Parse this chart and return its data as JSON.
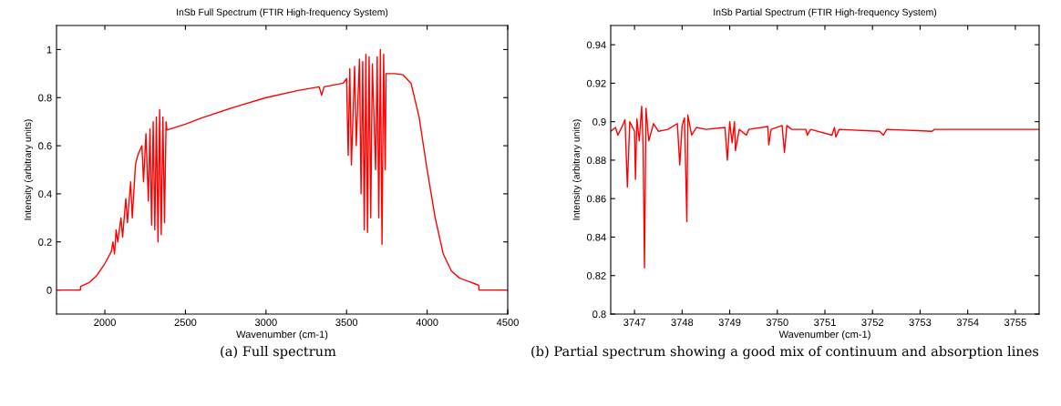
{
  "chart_data": [
    {
      "type": "line",
      "title": "InSb Full Spectrum (FTIR High-frequency System)",
      "xlabel": "Wavenumber (cm-1)",
      "ylabel": "Intensity (arbitrary units)",
      "xlim": [
        1700,
        4500
      ],
      "ylim": [
        -0.1,
        1.1
      ],
      "xticks": [
        2000,
        2500,
        3000,
        3500,
        4000,
        4500
      ],
      "yticks": [
        0,
        0.2,
        0.4,
        0.6,
        0.8,
        1
      ],
      "grid": false,
      "legend": false,
      "annotations": [
        "(a) Full spectrum"
      ],
      "series": [
        {
          "color": "#ff0000",
          "x": [
            1700,
            1848,
            1850,
            1900,
            1950,
            2000,
            2040,
            2050,
            2060,
            2070,
            2080,
            2100,
            2110,
            2130,
            2140,
            2160,
            2170,
            2190,
            2200,
            2210,
            2230,
            2240,
            2255,
            2270,
            2280,
            2290,
            2300,
            2310,
            2320,
            2330,
            2340,
            2350,
            2360,
            2370,
            2380,
            2385,
            2500,
            2600,
            2800,
            3000,
            3200,
            3330,
            3345,
            3360,
            3480,
            3500,
            3510,
            3520,
            3530,
            3550,
            3560,
            3580,
            3590,
            3600,
            3610,
            3620,
            3630,
            3640,
            3650,
            3660,
            3680,
            3690,
            3700,
            3710,
            3720,
            3730,
            3740,
            3745,
            3800,
            3850,
            3900,
            3950,
            4000,
            4050,
            4100,
            4150,
            4200,
            4300,
            4320,
            4322,
            4500
          ],
          "values": [
            0,
            0,
            0.015,
            0.03,
            0.06,
            0.11,
            0.16,
            0.2,
            0.15,
            0.25,
            0.2,
            0.3,
            0.22,
            0.38,
            0.28,
            0.45,
            0.3,
            0.52,
            0.55,
            0.57,
            0.6,
            0.45,
            0.65,
            0.37,
            0.67,
            0.27,
            0.7,
            0.25,
            0.72,
            0.2,
            0.75,
            0.23,
            0.72,
            0.28,
            0.7,
            0.665,
            0.69,
            0.715,
            0.76,
            0.8,
            0.83,
            0.845,
            0.81,
            0.845,
            0.86,
            0.88,
            0.56,
            0.92,
            0.52,
            0.93,
            0.6,
            0.96,
            0.4,
            0.95,
            0.25,
            0.98,
            0.24,
            0.97,
            0.3,
            0.94,
            0.5,
            0.97,
            0.3,
            1.0,
            0.19,
            0.98,
            0.5,
            0.9,
            0.9,
            0.895,
            0.86,
            0.72,
            0.5,
            0.3,
            0.15,
            0.08,
            0.05,
            0.025,
            0.02,
            0,
            0
          ]
        }
      ]
    },
    {
      "type": "line",
      "title": "InSb Partial Spectrum (FTIR High-frequency System)",
      "xlabel": "Wavenumber (cm-1)",
      "ylabel": "Intensity (arbitrary units)",
      "xlim": [
        3746.5,
        3755.5
      ],
      "ylim": [
        0.8,
        0.95
      ],
      "xticks": [
        3747,
        3748,
        3749,
        3750,
        3751,
        3752,
        3753,
        3754,
        3755
      ],
      "yticks": [
        0.8,
        0.82,
        0.84,
        0.86,
        0.88,
        0.9,
        0.92,
        0.94
      ],
      "grid": false,
      "legend": false,
      "annotations": [
        "(b) Partial spectrum showing a good mix of continuum and absorption lines"
      ],
      "series": [
        {
          "color": "#ff0000",
          "x": [
            3746.5,
            3746.6,
            3746.65,
            3746.75,
            3746.8,
            3746.85,
            3746.9,
            3747.0,
            3747.02,
            3747.05,
            3747.1,
            3747.15,
            3747.18,
            3747.21,
            3747.24,
            3747.3,
            3747.4,
            3747.5,
            3747.7,
            3747.9,
            3747.95,
            3748.0,
            3748.05,
            3748.1,
            3748.12,
            3748.2,
            3748.3,
            3748.5,
            3748.9,
            3748.95,
            3749.0,
            3749.05,
            3749.1,
            3749.12,
            3749.2,
            3749.35,
            3749.4,
            3749.8,
            3749.82,
            3749.87,
            3750.1,
            3750.15,
            3750.2,
            3750.3,
            3750.6,
            3750.63,
            3750.7,
            3751.15,
            3751.2,
            3751.23,
            3751.3,
            3752.15,
            3752.23,
            3752.3,
            3753.25,
            3753.3,
            3755.5
          ],
          "values": [
            0.895,
            0.897,
            0.893,
            0.898,
            0.901,
            0.866,
            0.9,
            0.895,
            0.87,
            0.9015,
            0.89,
            0.908,
            0.888,
            0.824,
            0.907,
            0.89,
            0.899,
            0.895,
            0.896,
            0.899,
            0.8775,
            0.898,
            0.902,
            0.848,
            0.9035,
            0.893,
            0.897,
            0.896,
            0.897,
            0.88,
            0.9,
            0.889,
            0.9,
            0.885,
            0.896,
            0.893,
            0.896,
            0.8975,
            0.888,
            0.896,
            0.898,
            0.884,
            0.898,
            0.896,
            0.896,
            0.893,
            0.896,
            0.893,
            0.897,
            0.892,
            0.896,
            0.895,
            0.893,
            0.896,
            0.895,
            0.896,
            0.896
          ]
        }
      ]
    }
  ]
}
